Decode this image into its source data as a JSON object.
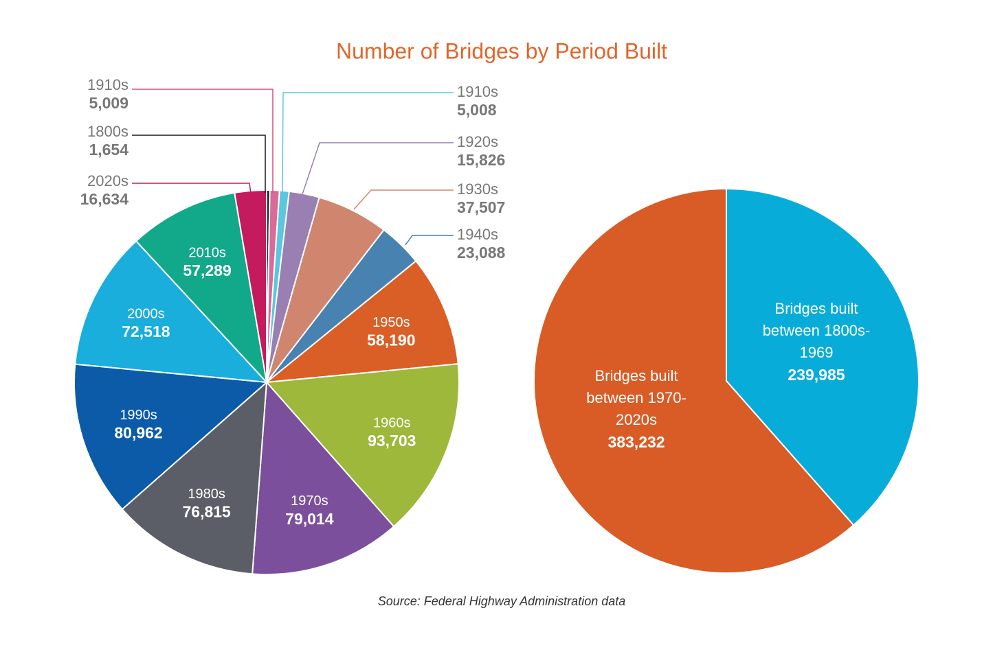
{
  "title": "Number of Bridges by Period Built",
  "source": "Source: Federal Highway Administration data",
  "chart_data": [
    {
      "type": "pie",
      "categories": [
        "1800s",
        "1910s",
        "1910s",
        "1920s",
        "1930s",
        "1940s",
        "1950s",
        "1960s",
        "1970s",
        "1980s",
        "1990s",
        "2000s",
        "2010s",
        "2020s"
      ],
      "values": [
        1654,
        5009,
        5008,
        15826,
        37507,
        23088,
        58190,
        93703,
        79014,
        76815,
        80962,
        72518,
        57289,
        16634
      ],
      "value_labels": [
        "1,654",
        "5,009",
        "5,008",
        "15,826",
        "37,507",
        "23,088",
        "58,190",
        "93,703",
        "79,014",
        "76,815",
        "80,962",
        "72,518",
        "57,289",
        "16,634"
      ],
      "colors": [
        "#1a1a1a",
        "#d86b98",
        "#5cc6e0",
        "#9a7fb2",
        "#d0866e",
        "#4782b1",
        "#d95f26",
        "#9db83b",
        "#7b4f9b",
        "#5b5e66",
        "#0b5ba8",
        "#19aedb",
        "#12a98a",
        "#c41a5e"
      ]
    },
    {
      "type": "pie",
      "categories": [
        "Bridges built between 1800s-1969",
        "Bridges built between 1970-2020s"
      ],
      "values": [
        239985,
        383232
      ],
      "value_labels": [
        "239,985",
        "383,232"
      ],
      "colors": [
        "#08acd9",
        "#d95b26"
      ]
    }
  ]
}
